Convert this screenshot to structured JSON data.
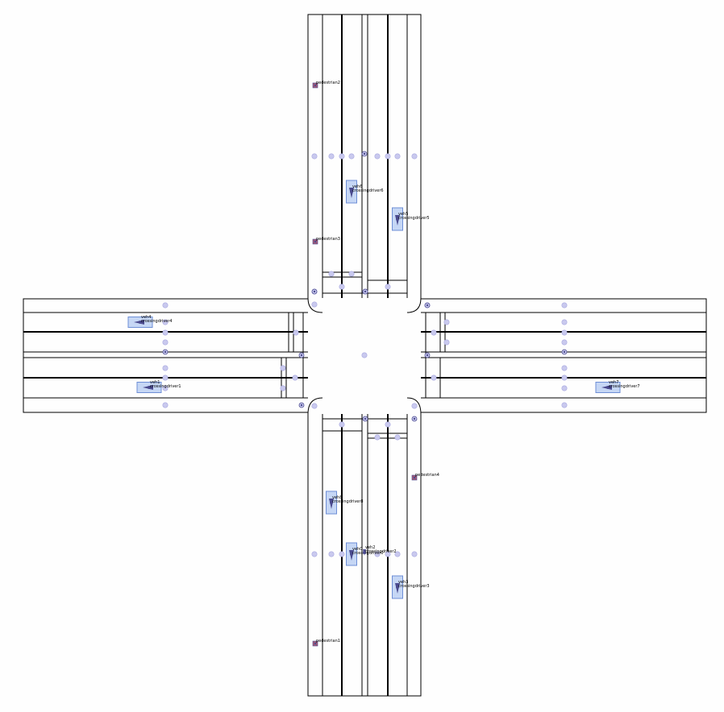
{
  "colors": {
    "background": "#fefefe",
    "road_edge": "#000000",
    "node_fill": "#c9c9ee",
    "node_stroke": "#a9a9e0",
    "vehicle_box_fill": "#c6d7f5",
    "vehicle_box_stroke": "#6e8fd6",
    "agent_fill": "#4b4b8f",
    "pedestrian_fill": "#a05a7a"
  },
  "vehicles": [
    {
      "id": "veh0",
      "driver": "crossingdriver0",
      "orientation": "vertical"
    },
    {
      "id": "veh1",
      "driver": "crossingdriver1",
      "orientation": "horizontal"
    },
    {
      "id": "veh2",
      "driver": "crossingdriver2",
      "orientation": "vertical"
    },
    {
      "id": "veh3",
      "driver": "crossingdriver3",
      "orientation": "vertical"
    },
    {
      "id": "veh4",
      "driver": "crossingdriver4",
      "orientation": "horizontal"
    },
    {
      "id": "veh5",
      "driver": "crossingdriver5",
      "orientation": "vertical"
    },
    {
      "id": "veh6",
      "driver": "crossingdriver6",
      "orientation": "vertical"
    },
    {
      "id": "veh7",
      "driver": "crossingdriver7",
      "orientation": "horizontal"
    },
    {
      "id": "veh8",
      "driver": "crossingdriver8",
      "orientation": "vertical"
    }
  ],
  "pedestrians": [
    {
      "id": "pedestrian1"
    },
    {
      "id": "pedestrian2"
    },
    {
      "id": "pedestrian3"
    },
    {
      "id": "pedestrian4"
    }
  ]
}
